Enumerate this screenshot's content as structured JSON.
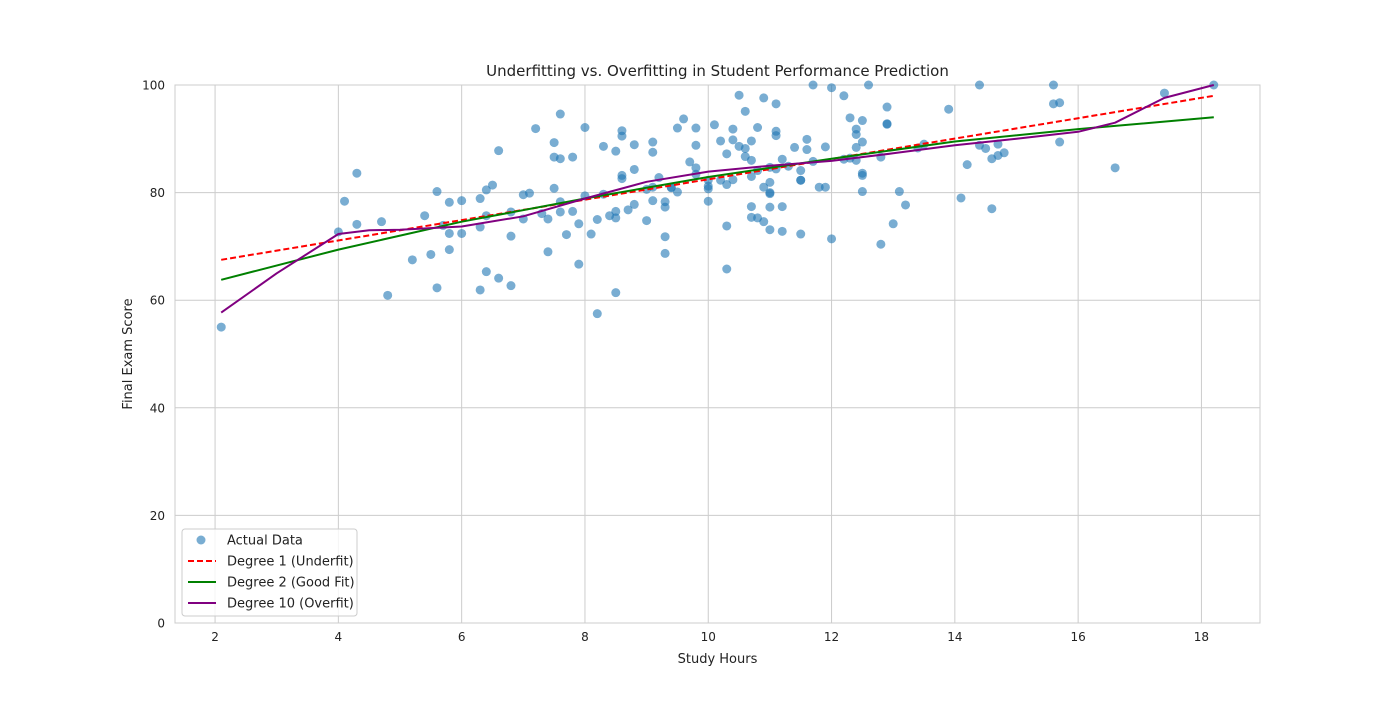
{
  "chart_data": {
    "type": "scatter",
    "title": "Underfitting vs. Overfitting in Student Performance Prediction",
    "xlabel": "Study Hours",
    "ylabel": "Final Exam Score",
    "xlim": [
      1.35,
      18.95
    ],
    "ylim": [
      0,
      100
    ],
    "xticks": [
      2,
      4,
      6,
      8,
      10,
      12,
      14,
      16,
      18
    ],
    "yticks": [
      0,
      20,
      40,
      60,
      80,
      100
    ],
    "grid": true,
    "legend_position": "lower-left",
    "colors": {
      "scatter": "#1f77b4",
      "degree1": "#ff0000",
      "degree2": "#008000",
      "degree10": "#800080",
      "grid": "#cccccc",
      "frame": "#cccccc"
    },
    "scatter": {
      "name": "Actual Data",
      "points": [
        [
          2.1,
          55.0
        ],
        [
          4.0,
          72.7
        ],
        [
          4.1,
          78.4
        ],
        [
          4.3,
          74.1
        ],
        [
          4.3,
          83.6
        ],
        [
          4.7,
          74.6
        ],
        [
          4.8,
          60.9
        ],
        [
          5.2,
          67.5
        ],
        [
          5.4,
          75.7
        ],
        [
          5.5,
          68.5
        ],
        [
          5.6,
          62.3
        ],
        [
          5.6,
          80.2
        ],
        [
          5.7,
          73.9
        ],
        [
          5.8,
          72.4
        ],
        [
          5.8,
          78.2
        ],
        [
          5.8,
          69.4
        ],
        [
          6.0,
          72.4
        ],
        [
          6.0,
          78.5
        ],
        [
          6.3,
          61.9
        ],
        [
          6.3,
          73.6
        ],
        [
          6.3,
          78.9
        ],
        [
          6.4,
          75.7
        ],
        [
          6.4,
          65.3
        ],
        [
          6.4,
          80.5
        ],
        [
          6.5,
          81.4
        ],
        [
          6.6,
          64.1
        ],
        [
          6.6,
          87.8
        ],
        [
          6.8,
          62.7
        ],
        [
          6.8,
          71.9
        ],
        [
          6.8,
          76.4
        ],
        [
          7.0,
          79.6
        ],
        [
          7.0,
          75.1
        ],
        [
          7.1,
          79.9
        ],
        [
          7.2,
          91.9
        ],
        [
          7.3,
          76.1
        ],
        [
          7.4,
          69.0
        ],
        [
          7.4,
          75.1
        ],
        [
          7.5,
          80.8
        ],
        [
          7.5,
          86.6
        ],
        [
          7.5,
          89.3
        ],
        [
          7.6,
          86.3
        ],
        [
          7.6,
          94.6
        ],
        [
          7.6,
          76.4
        ],
        [
          7.6,
          78.3
        ],
        [
          7.7,
          72.2
        ],
        [
          7.8,
          86.6
        ],
        [
          7.8,
          76.5
        ],
        [
          7.9,
          66.7
        ],
        [
          7.9,
          74.2
        ],
        [
          8.0,
          92.1
        ],
        [
          8.0,
          79.4
        ],
        [
          8.1,
          72.3
        ],
        [
          8.2,
          57.5
        ],
        [
          8.2,
          75.0
        ],
        [
          8.3,
          79.7
        ],
        [
          8.3,
          88.6
        ],
        [
          8.4,
          75.7
        ],
        [
          8.5,
          87.7
        ],
        [
          8.5,
          75.3
        ],
        [
          8.5,
          76.5
        ],
        [
          8.5,
          61.4
        ],
        [
          8.6,
          83.2
        ],
        [
          8.6,
          90.5
        ],
        [
          8.6,
          82.6
        ],
        [
          8.6,
          91.5
        ],
        [
          8.7,
          76.8
        ],
        [
          8.8,
          84.3
        ],
        [
          8.8,
          88.9
        ],
        [
          8.8,
          77.8
        ],
        [
          9.0,
          80.6
        ],
        [
          9.0,
          74.8
        ],
        [
          9.1,
          78.5
        ],
        [
          9.1,
          81.0
        ],
        [
          9.1,
          87.5
        ],
        [
          9.1,
          89.4
        ],
        [
          9.2,
          82.8
        ],
        [
          9.3,
          77.3
        ],
        [
          9.3,
          78.3
        ],
        [
          9.3,
          68.7
        ],
        [
          9.3,
          71.8
        ],
        [
          9.4,
          81.0
        ],
        [
          9.4,
          80.9
        ],
        [
          9.5,
          92.0
        ],
        [
          9.5,
          80.1
        ],
        [
          9.6,
          93.7
        ],
        [
          9.7,
          85.7
        ],
        [
          9.8,
          83.4
        ],
        [
          9.8,
          84.6
        ],
        [
          9.8,
          92.0
        ],
        [
          9.8,
          88.8
        ],
        [
          10.0,
          78.4
        ],
        [
          10.0,
          80.7
        ],
        [
          10.0,
          81.2
        ],
        [
          10.0,
          82.3
        ],
        [
          10.1,
          92.6
        ],
        [
          10.2,
          82.3
        ],
        [
          10.2,
          89.6
        ],
        [
          10.3,
          65.8
        ],
        [
          10.3,
          87.2
        ],
        [
          10.3,
          81.5
        ],
        [
          10.3,
          73.8
        ],
        [
          10.4,
          91.8
        ],
        [
          10.4,
          89.8
        ],
        [
          10.4,
          82.4
        ],
        [
          10.5,
          98.1
        ],
        [
          10.5,
          88.6
        ],
        [
          10.6,
          86.7
        ],
        [
          10.6,
          88.2
        ],
        [
          10.6,
          95.1
        ],
        [
          10.7,
          89.6
        ],
        [
          10.7,
          77.4
        ],
        [
          10.7,
          75.4
        ],
        [
          10.7,
          83.0
        ],
        [
          10.7,
          86.0
        ],
        [
          10.8,
          75.3
        ],
        [
          10.8,
          84.1
        ],
        [
          10.8,
          92.1
        ],
        [
          10.9,
          81.0
        ],
        [
          10.9,
          97.6
        ],
        [
          10.9,
          74.6
        ],
        [
          11.0,
          84.7
        ],
        [
          11.0,
          77.3
        ],
        [
          11.0,
          80.0
        ],
        [
          11.0,
          73.1
        ],
        [
          11.0,
          79.8
        ],
        [
          11.0,
          81.9
        ],
        [
          11.1,
          84.4
        ],
        [
          11.1,
          91.4
        ],
        [
          11.1,
          96.5
        ],
        [
          11.1,
          90.6
        ],
        [
          11.2,
          86.2
        ],
        [
          11.2,
          77.4
        ],
        [
          11.2,
          72.8
        ],
        [
          11.3,
          84.9
        ],
        [
          11.4,
          88.4
        ],
        [
          11.5,
          84.1
        ],
        [
          11.5,
          82.3
        ],
        [
          11.5,
          82.3
        ],
        [
          11.5,
          72.3
        ],
        [
          11.6,
          89.9
        ],
        [
          11.6,
          88.0
        ],
        [
          11.7,
          85.8
        ],
        [
          11.7,
          100.0
        ],
        [
          11.8,
          81.0
        ],
        [
          11.9,
          81.0
        ],
        [
          11.9,
          88.5
        ],
        [
          12.0,
          99.5
        ],
        [
          12.0,
          71.4
        ],
        [
          12.2,
          98.0
        ],
        [
          12.2,
          86.2
        ],
        [
          12.3,
          86.4
        ],
        [
          12.3,
          93.9
        ],
        [
          12.4,
          91.8
        ],
        [
          12.4,
          86.0
        ],
        [
          12.4,
          88.4
        ],
        [
          12.4,
          90.8
        ],
        [
          12.5,
          83.6
        ],
        [
          12.5,
          93.4
        ],
        [
          12.5,
          89.4
        ],
        [
          12.5,
          83.2
        ],
        [
          12.5,
          80.2
        ],
        [
          12.6,
          100.0
        ],
        [
          12.8,
          86.6
        ],
        [
          12.8,
          70.4
        ],
        [
          12.9,
          92.7
        ],
        [
          12.9,
          92.8
        ],
        [
          12.9,
          95.9
        ],
        [
          13.0,
          74.2
        ],
        [
          13.1,
          80.2
        ],
        [
          13.2,
          77.7
        ],
        [
          13.4,
          88.3
        ],
        [
          13.5,
          89.0
        ],
        [
          13.9,
          95.5
        ],
        [
          14.1,
          79.0
        ],
        [
          14.2,
          85.2
        ],
        [
          14.4,
          88.8
        ],
        [
          14.4,
          100.0
        ],
        [
          14.5,
          88.2
        ],
        [
          14.6,
          86.3
        ],
        [
          14.6,
          77.0
        ],
        [
          14.7,
          86.9
        ],
        [
          14.7,
          89.0
        ],
        [
          14.8,
          87.4
        ],
        [
          15.6,
          100.0
        ],
        [
          15.6,
          96.5
        ],
        [
          15.7,
          96.7
        ],
        [
          15.7,
          89.4
        ],
        [
          16.6,
          84.6
        ],
        [
          17.4,
          98.5
        ],
        [
          18.2,
          100.0
        ]
      ]
    },
    "series": [
      {
        "name": "Degree 1 (Underfit)",
        "x": [
          2.1,
          18.2
        ],
        "values": [
          67.5,
          98.0
        ]
      },
      {
        "name": "Degree 2 (Good Fit)",
        "x": [
          2.1,
          4,
          6,
          8,
          10,
          12,
          14,
          16,
          18.2
        ],
        "values": [
          63.8,
          69.4,
          74.6,
          78.9,
          82.9,
          86.3,
          89.5,
          91.8,
          94.0
        ]
      },
      {
        "name": "Degree 10 (Overfit)",
        "x": [
          2.1,
          3.0,
          4.0,
          4.5,
          5.0,
          6.0,
          7.0,
          8.0,
          9.0,
          10.0,
          11.0,
          12.0,
          13.0,
          14.0,
          15.0,
          16.0,
          16.6,
          17.4,
          18.2
        ],
        "values": [
          57.7,
          65.0,
          72.3,
          73.0,
          73.1,
          73.7,
          75.6,
          78.9,
          82.0,
          83.9,
          85.0,
          85.9,
          87.3,
          88.8,
          90.0,
          91.3,
          93.0,
          97.6,
          100.0
        ]
      }
    ],
    "legend": [
      "Actual Data",
      "Degree 1 (Underfit)",
      "Degree 2 (Good Fit)",
      "Degree 10 (Overfit)"
    ]
  }
}
